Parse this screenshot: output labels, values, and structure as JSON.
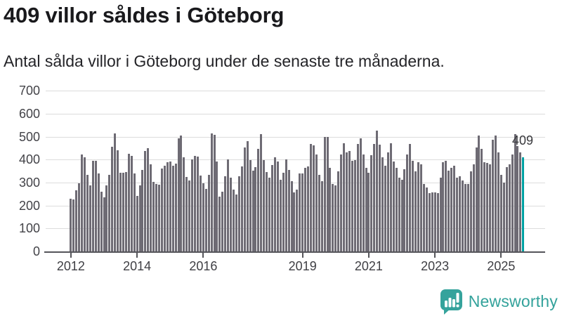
{
  "header": {
    "title": "409 villor såldes i Göteborg",
    "subtitle": "Antal sålda villor i Göteborg under de senaste tre månaderna."
  },
  "chart_data": {
    "type": "bar",
    "title": "409 villor såldes i Göteborg",
    "subtitle": "Antal sålda villor i Göteborg under de senaste tre månaderna.",
    "frequency": "monthly",
    "x_start": "2012-01",
    "x_end": "2025-09",
    "ylim": [
      0,
      700
    ],
    "yticks": [
      0,
      100,
      200,
      300,
      400,
      500,
      600,
      700
    ],
    "xtick_years": [
      2012,
      2014,
      2016,
      2019,
      2021,
      2023,
      2025
    ],
    "grid": "horizontal",
    "legend": "none",
    "values": [
      229,
      225,
      265,
      297,
      421,
      409,
      334,
      286,
      395,
      395,
      339,
      261,
      236,
      288,
      332,
      457,
      513,
      439,
      344,
      344,
      346,
      425,
      415,
      340,
      242,
      288,
      354,
      438,
      450,
      379,
      303,
      293,
      290,
      361,
      374,
      389,
      390,
      374,
      381,
      493,
      505,
      409,
      323,
      310,
      401,
      417,
      414,
      330,
      298,
      273,
      333,
      514,
      509,
      390,
      240,
      260,
      326,
      402,
      321,
      270,
      247,
      328,
      369,
      452,
      480,
      397,
      351,
      367,
      448,
      511,
      398,
      345,
      322,
      376,
      409,
      391,
      313,
      344,
      402,
      354,
      305,
      258,
      268,
      339,
      340,
      364,
      370,
      468,
      461,
      423,
      334,
      305,
      499,
      497,
      364,
      293,
      286,
      349,
      423,
      471,
      430,
      437,
      395,
      397,
      468,
      491,
      423,
      364,
      344,
      420,
      468,
      526,
      466,
      410,
      374,
      430,
      471,
      390,
      364,
      322,
      313,
      359,
      423,
      468,
      395,
      349,
      387,
      379,
      293,
      278,
      253,
      258,
      257,
      254,
      320,
      389,
      394,
      351,
      364,
      374,
      320,
      328,
      310,
      295,
      295,
      349,
      379,
      452,
      506,
      448,
      389,
      384,
      379,
      486,
      506,
      430,
      333,
      300,
      367,
      379,
      422,
      510,
      458,
      430,
      409
    ],
    "highlight": {
      "index": 164,
      "month": "2025-09",
      "value": 409,
      "label": "409"
    },
    "colors": {
      "bar": "#6e6b74",
      "highlight": "#00a1a3",
      "grid": "#dcdcdc",
      "axis": "#55555a",
      "tick_label": "#3f3f44",
      "brand": "#33a29b"
    }
  },
  "footer": {
    "brand": "Newsworthy"
  }
}
